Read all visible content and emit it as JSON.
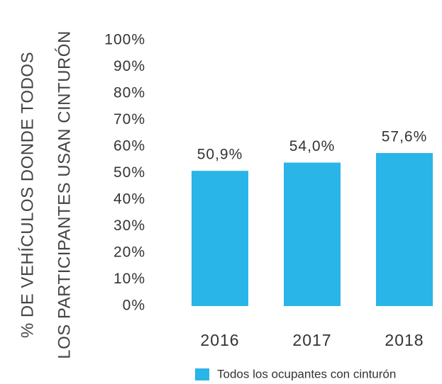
{
  "chart_data": {
    "type": "bar",
    "ylabel": [
      "% DE VEHÍCULOS DONDE TODOS",
      "LOS PARTICIPANTES USAN CINTURÓN"
    ],
    "categories": [
      "2016",
      "2017",
      "2018"
    ],
    "series": [
      {
        "name": "Todos los ocupantes con cinturón",
        "color": "#29b5e8",
        "values": [
          50.9,
          54.0,
          57.6
        ],
        "value_labels": [
          "50,9%",
          "54,0%",
          "57,6%"
        ]
      }
    ],
    "ylim": [
      0,
      100
    ],
    "yticks": [
      {
        "value": 0,
        "label": "0%"
      },
      {
        "value": 10,
        "label": "10%"
      },
      {
        "value": 20,
        "label": "20%"
      },
      {
        "value": 30,
        "label": "30%"
      },
      {
        "value": 40,
        "label": "40%"
      },
      {
        "value": 50,
        "label": "50%"
      },
      {
        "value": 60,
        "label": "60%"
      },
      {
        "value": 70,
        "label": "70%"
      },
      {
        "value": 80,
        "label": "80%"
      },
      {
        "value": 90,
        "label": "90%"
      },
      {
        "value": 100,
        "label": "100%"
      }
    ],
    "grid": false,
    "legend": "bottom"
  }
}
